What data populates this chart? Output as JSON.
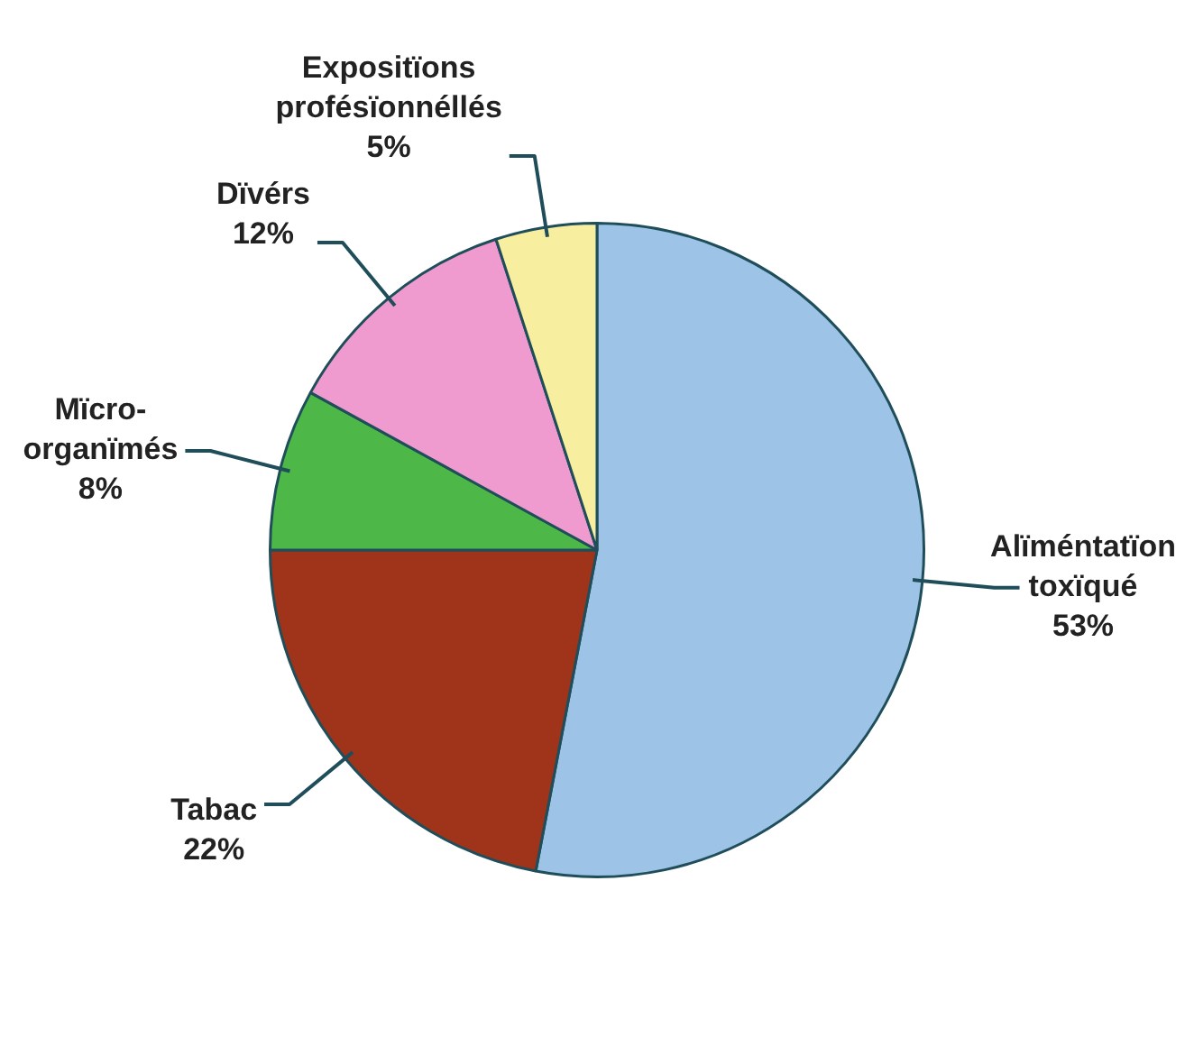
{
  "chart_data": {
    "type": "pie",
    "categories": [
      "Alïméntatïon toxïqué",
      "Tabac",
      "Mïcro-organïmés",
      "Dïvérs",
      "Expositïons profésïonnéllés"
    ],
    "values": [
      53,
      22,
      8,
      12,
      5
    ],
    "colors": [
      "#9dc3e6",
      "#a0341a",
      "#4db848",
      "#f09bd0",
      "#f7eea0"
    ],
    "value_labels": [
      "53%",
      "22%",
      "8%",
      "12%",
      "5%"
    ],
    "legend": false
  }
}
